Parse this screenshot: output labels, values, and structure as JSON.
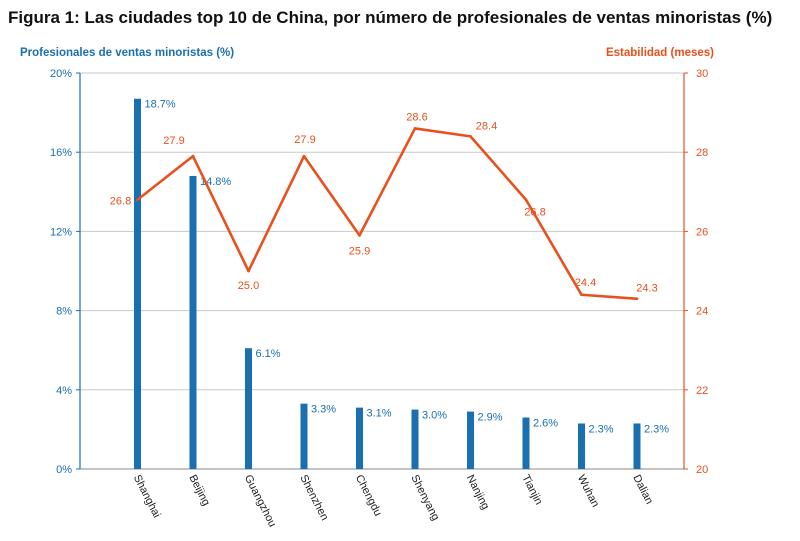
{
  "chart_data": {
    "type": "bar+line",
    "title": "Figura 1: Las ciudades top 10 de China, por número de profesionales de ventas minoristas (%)",
    "left_axis_label": "Profesionales de ventas minoristas  (%)",
    "right_axis_label": "Estabilidad (meses)",
    "categories": [
      "Shanghai",
      "Beijing",
      "Guangzhou",
      "Shenzhen",
      "Chengdu",
      "Shenyang",
      "Nanjing",
      "Tianjin",
      "Wuhan",
      "Dalian"
    ],
    "bar_values": [
      18.7,
      14.8,
      6.1,
      3.3,
      3.1,
      3.0,
      2.9,
      2.6,
      2.3,
      2.3
    ],
    "bar_labels": [
      "18.7%",
      "14.8%",
      "6.1%",
      "3.3%",
      "3.1%",
      "3.0%",
      "2.9%",
      "2.6%",
      "2.3%",
      "2.3%"
    ],
    "line_values": [
      26.8,
      27.9,
      25.0,
      27.9,
      25.9,
      28.6,
      28.4,
      26.8,
      24.4,
      24.3
    ],
    "line_labels": [
      "26.8",
      "27.9",
      "25.0",
      "27.9",
      "25.9",
      "28.6",
      "28.4",
      "26.8",
      "24.4",
      "24.3"
    ],
    "left_ticks": [
      "0%",
      "4%",
      "8%",
      "12%",
      "16%",
      "20%"
    ],
    "left_tick_values": [
      0,
      4,
      8,
      12,
      16,
      20
    ],
    "right_ticks": [
      "20",
      "22",
      "24",
      "26",
      "28",
      "30"
    ],
    "right_tick_values": [
      20,
      22,
      24,
      26,
      28,
      30
    ],
    "ylim_left": [
      0,
      20
    ],
    "ylim_right": [
      20,
      30
    ],
    "grid": true,
    "bar_color": "#1a6fb0",
    "line_color": "#e8501d"
  }
}
